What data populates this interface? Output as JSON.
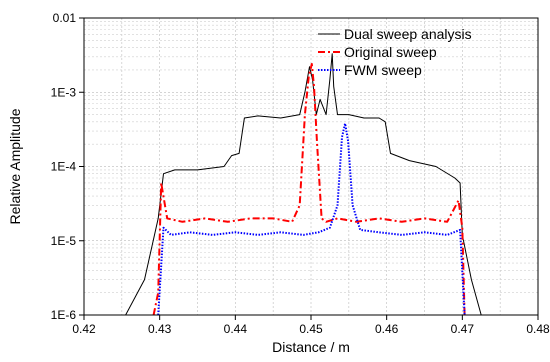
{
  "chart_data": {
    "type": "line",
    "xlabel": "Distance / m",
    "ylabel": "Relative Amplitude",
    "xlim": [
      0.42,
      0.48
    ],
    "ylim": [
      1e-06,
      0.01
    ],
    "yscale": "log",
    "grid": true,
    "legend_position": "top-right",
    "x_ticks": [
      0.42,
      0.43,
      0.44,
      0.45,
      0.46,
      0.47,
      0.48
    ],
    "x_tick_labels": [
      "0.42",
      "0.43",
      "0.44",
      "0.45",
      "0.46",
      "0.47",
      "0.48"
    ],
    "y_ticks": [
      1e-06,
      1e-05,
      0.0001,
      0.001,
      0.01
    ],
    "y_tick_labels": [
      "1E-6",
      "1E-5",
      "1E-4",
      "1E-3",
      "0.01"
    ],
    "series": [
      {
        "name": "Dual sweep analysis",
        "color": "#000000",
        "style": "solid",
        "x": [
          0.4255,
          0.428,
          0.4298,
          0.4305,
          0.432,
          0.435,
          0.4385,
          0.4395,
          0.4405,
          0.4412,
          0.443,
          0.446,
          0.4485,
          0.4492,
          0.4498,
          0.4502,
          0.4507,
          0.4512,
          0.452,
          0.4525,
          0.4528,
          0.453,
          0.4535,
          0.455,
          0.457,
          0.459,
          0.4598,
          0.4605,
          0.463,
          0.4665,
          0.469,
          0.4697,
          0.47,
          0.4712,
          0.4725
        ],
        "y": [
          1e-06,
          3e-06,
          2e-05,
          8e-05,
          9e-05,
          9e-05,
          0.0001,
          0.00014,
          0.00015,
          0.00045,
          0.00048,
          0.00045,
          0.0005,
          0.001,
          0.0022,
          0.0015,
          0.0005,
          0.0008,
          0.0005,
          0.0015,
          0.0033,
          0.0012,
          0.0005,
          0.0005,
          0.00045,
          0.00045,
          0.0004,
          0.00015,
          0.00012,
          0.0001,
          7e-05,
          6e-05,
          1.2e-05,
          3e-06,
          1e-06
        ]
      },
      {
        "name": "Original sweep",
        "color": "#ff0000",
        "style": "dash-dot",
        "x": [
          0.4292,
          0.4298,
          0.4302,
          0.431,
          0.433,
          0.436,
          0.439,
          0.442,
          0.445,
          0.4475,
          0.4485,
          0.4492,
          0.4497,
          0.4501,
          0.4504,
          0.4508,
          0.4514,
          0.452,
          0.4535,
          0.456,
          0.459,
          0.462,
          0.465,
          0.468,
          0.4695,
          0.47,
          0.4703
        ],
        "y": [
          1e-06,
          2e-06,
          6e-05,
          2e-05,
          1.8e-05,
          2e-05,
          1.8e-05,
          2e-05,
          2e-05,
          1.8e-05,
          3e-05,
          0.0005,
          0.0016,
          0.0024,
          0.0012,
          0.0002,
          2e-05,
          1.8e-05,
          2e-05,
          1.8e-05,
          2e-05,
          1.8e-05,
          2e-05,
          1.8e-05,
          3.5e-05,
          1.5e-05,
          1e-06
        ]
      },
      {
        "name": "FWM sweep",
        "color": "#0000ff",
        "style": "dotted",
        "x": [
          0.4298,
          0.4305,
          0.4315,
          0.434,
          0.437,
          0.44,
          0.443,
          0.446,
          0.449,
          0.451,
          0.4525,
          0.4535,
          0.4541,
          0.4545,
          0.4549,
          0.4555,
          0.4565,
          0.459,
          0.462,
          0.465,
          0.468,
          0.4697,
          0.4703
        ],
        "y": [
          1e-06,
          1.5e-05,
          1.2e-05,
          1.3e-05,
          1.2e-05,
          1.3e-05,
          1.2e-05,
          1.3e-05,
          1.2e-05,
          1.3e-05,
          1.5e-05,
          3e-05,
          0.00025,
          0.00038,
          0.00022,
          3e-05,
          1.4e-05,
          1.3e-05,
          1.2e-05,
          1.3e-05,
          1.2e-05,
          1.4e-05,
          1e-06
        ]
      }
    ]
  }
}
